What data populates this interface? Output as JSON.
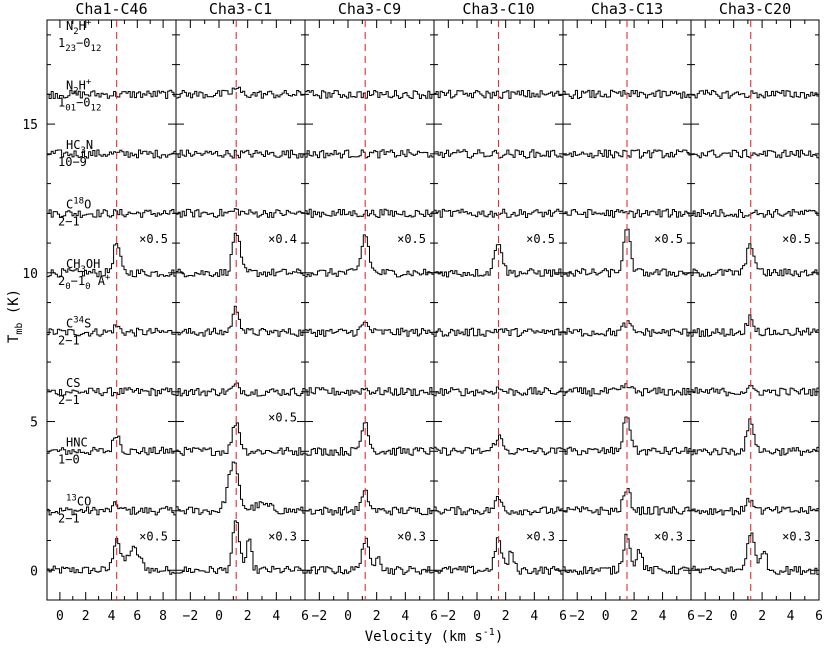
{
  "chart_data": {
    "type": "line",
    "xlabel_main": "Velocity (km s",
    "xlabel_sup": "-1",
    "xlabel_close": ")",
    "ylabel_main": "T",
    "ylabel_sub": "mb",
    "ylabel_unit": " (K)",
    "ylim": [
      -1.0,
      18.5
    ],
    "y_ticks": [
      "0",
      "5",
      "10",
      "15"
    ],
    "y_tick_values": [
      0,
      5,
      10,
      15
    ],
    "colors": {
      "line": "#000000",
      "marker": "#e03030"
    },
    "panels": [
      {
        "source": "Cha1-C46",
        "xlim": [
          -1,
          9
        ],
        "tick_values": [
          0,
          2,
          4,
          6,
          8
        ],
        "tick_labels": [
          "0",
          "2",
          "4",
          "6",
          "8"
        ],
        "vlsr": 4.4
      },
      {
        "source": "Cha3-C1",
        "xlim": [
          -3,
          6
        ],
        "tick_values": [
          -2,
          0,
          2,
          4,
          6
        ],
        "tick_labels": [
          "−2",
          "0",
          "2",
          "4",
          "6"
        ],
        "vlsr": 1.2
      },
      {
        "source": "Cha3-C9",
        "xlim": [
          -3,
          6
        ],
        "tick_values": [
          -2,
          0,
          2,
          4,
          6
        ],
        "tick_labels": [
          "−2",
          "0",
          "2",
          "4",
          "6"
        ],
        "vlsr": 1.2
      },
      {
        "source": "Cha3-C10",
        "xlim": [
          -3,
          6
        ],
        "tick_values": [
          -2,
          0,
          2,
          4,
          6
        ],
        "tick_labels": [
          "−2",
          "0",
          "2",
          "4",
          "6"
        ],
        "vlsr": 1.5
      },
      {
        "source": "Cha3-C13",
        "xlim": [
          -3,
          6
        ],
        "tick_values": [
          -2,
          0,
          2,
          4,
          6
        ],
        "tick_labels": [
          "−2",
          "0",
          "2",
          "4",
          "6"
        ],
        "vlsr": 1.5
      },
      {
        "source": "Cha3-C20",
        "xlim": [
          -3,
          6
        ],
        "tick_values": [
          -2,
          0,
          2,
          4,
          6
        ],
        "tick_labels": [
          "−2",
          "0",
          "2",
          "4",
          "6"
        ],
        "vlsr": 1.2
      }
    ],
    "lines": [
      {
        "id": "13co",
        "label_parts": [
          [
            "",
            "13"
          ],
          [
            "CO",
            ""
          ]
        ],
        "label_line2_parts": [
          [
            "2−1",
            ""
          ]
        ],
        "offset": 0,
        "scales": [
          "×0.5",
          "×0.3",
          "×0.3",
          "×0.3",
          "×0.3",
          "×0.3"
        ],
        "peaks": [
          1.1,
          1.6,
          1.0,
          1.0,
          1.2,
          1.3
        ]
      },
      {
        "id": "hnc",
        "label_parts": [
          [
            "HNC",
            ""
          ]
        ],
        "label_line2_parts": [
          [
            "1−0",
            ""
          ]
        ],
        "offset": 2,
        "scales": [
          "",
          "",
          "",
          "",
          "",
          ""
        ],
        "peaks": [
          0.2,
          1.6,
          0.6,
          0.4,
          0.7,
          0.4
        ]
      },
      {
        "id": "cs",
        "label_parts": [
          [
            "CS",
            ""
          ]
        ],
        "label_line2_parts": [
          [
            "2−1",
            ""
          ]
        ],
        "offset": 4,
        "scales": [
          "",
          "×0.5",
          "",
          "",
          "",
          ""
        ],
        "peaks": [
          0.6,
          1.0,
          1.0,
          0.5,
          1.2,
          1.0
        ]
      },
      {
        "id": "c34s",
        "label_parts": [
          [
            "C",
            ""
          ],
          [
            "",
            "34"
          ],
          [
            "S",
            ""
          ]
        ],
        "label_line2_parts": [
          [
            "2−1",
            ""
          ]
        ],
        "offset": 6,
        "scales": [
          "",
          "",
          "",
          "",
          "",
          ""
        ],
        "peaks": [
          0.0,
          0.2,
          0.1,
          0.1,
          0.2,
          0.1
        ]
      },
      {
        "id": "ch3oh",
        "label_parts": [
          [
            "CH",
            ""
          ],
          [
            "3",
            "_"
          ],
          [
            "OH",
            ""
          ]
        ],
        "label_line2_parts": [
          [
            "2",
            ""
          ],
          [
            "0",
            "_"
          ],
          [
            "−1",
            ""
          ],
          [
            "0",
            "_"
          ],
          [
            " A",
            ""
          ],
          [
            "",
            "+"
          ]
        ],
        "offset": 8,
        "scales": [
          "",
          "",
          "",
          "",
          "",
          ""
        ],
        "peaks": [
          0.2,
          0.8,
          0.3,
          0.1,
          0.3,
          0.5
        ]
      },
      {
        "id": "c18o",
        "label_parts": [
          [
            "C",
            ""
          ],
          [
            "",
            "18"
          ],
          [
            "O",
            ""
          ]
        ],
        "label_line2_parts": [
          [
            "2−1",
            ""
          ]
        ],
        "offset": 10,
        "scales": [
          "×0.5",
          "×0.4",
          "×0.5",
          "×0.5",
          "×0.5",
          "×0.5"
        ],
        "peaks": [
          1.0,
          1.4,
          1.3,
          1.1,
          1.4,
          1.0
        ]
      },
      {
        "id": "hc3n",
        "label_parts": [
          [
            "HC",
            ""
          ],
          [
            "3",
            "_"
          ],
          [
            "N",
            ""
          ]
        ],
        "label_line2_parts": [
          [
            "10−9",
            ""
          ]
        ],
        "offset": 12,
        "scales": [
          "",
          "",
          "",
          "",
          "",
          ""
        ],
        "peaks": [
          0.0,
          0.1,
          0.0,
          0.0,
          0.0,
          0.0
        ]
      },
      {
        "id": "n2h101",
        "label_parts": [
          [
            "N",
            ""
          ],
          [
            "2",
            "_"
          ],
          [
            "H",
            ""
          ],
          [
            "",
            "+"
          ]
        ],
        "label_line2_parts": [
          [
            "1",
            ""
          ],
          [
            "01",
            "_"
          ],
          [
            "−0",
            ""
          ],
          [
            "12",
            "_"
          ]
        ],
        "offset": 14,
        "scales": [
          "",
          "",
          "",
          "",
          "",
          ""
        ],
        "peaks": [
          0.0,
          0.0,
          0.0,
          0.0,
          0.0,
          0.0
        ]
      },
      {
        "id": "n2h123",
        "label_parts": [
          [
            "N",
            ""
          ],
          [
            "2",
            "_"
          ],
          [
            "H",
            ""
          ],
          [
            "",
            "+"
          ]
        ],
        "label_line2_parts": [
          [
            "1",
            ""
          ],
          [
            "23",
            "_"
          ],
          [
            "−0",
            ""
          ],
          [
            "12",
            "_"
          ]
        ],
        "offset": 16,
        "scales": [
          "",
          "",
          "",
          "",
          "",
          ""
        ],
        "peaks": [
          0.0,
          0.2,
          0.0,
          0.0,
          0.0,
          0.0
        ]
      }
    ]
  }
}
